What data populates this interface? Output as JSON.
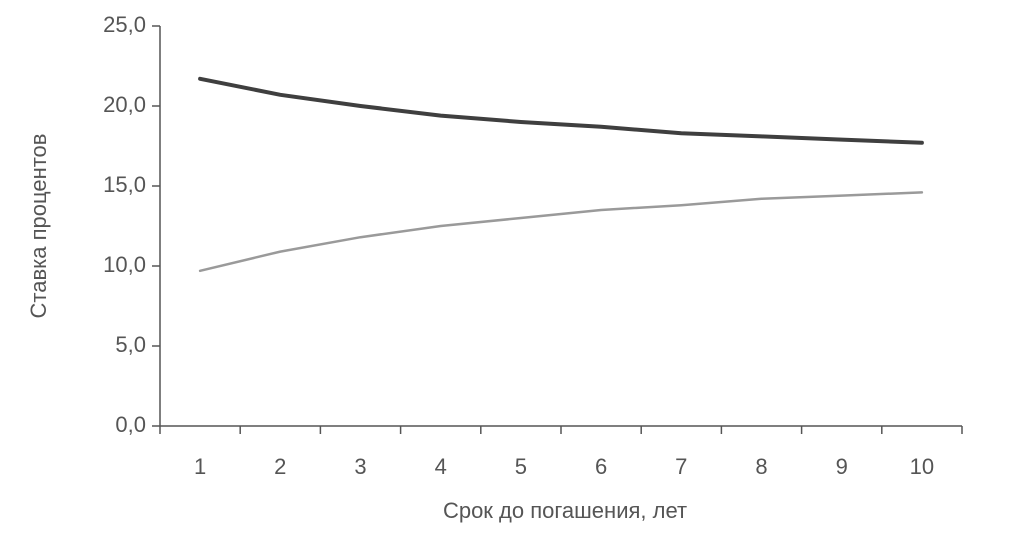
{
  "chart_data": {
    "type": "line",
    "x_label": "Срок до погашения, лет",
    "y_label": "Ставка процентов",
    "categories": [
      "1",
      "2",
      "3",
      "4",
      "5",
      "6",
      "7",
      "8",
      "9",
      "10"
    ],
    "series": [
      {
        "color": "#3f3f3f",
        "values": [
          21.7,
          20.7,
          20.0,
          19.4,
          19.0,
          18.7,
          18.3,
          18.1,
          17.9,
          17.7
        ]
      },
      {
        "color": "#9a9a9a",
        "values": [
          9.7,
          10.9,
          11.8,
          12.5,
          13.0,
          13.5,
          13.8,
          14.2,
          14.4,
          14.6
        ]
      }
    ],
    "ylim": [
      0,
      25
    ],
    "yticks": [
      {
        "value": 0,
        "label": "0,0"
      },
      {
        "value": 5,
        "label": "5,0"
      },
      {
        "value": 10,
        "label": "10,0"
      },
      {
        "value": 15,
        "label": "15,0"
      },
      {
        "value": 20,
        "label": "20,0"
      },
      {
        "value": 25,
        "label": "25,0"
      }
    ],
    "grid": false
  }
}
